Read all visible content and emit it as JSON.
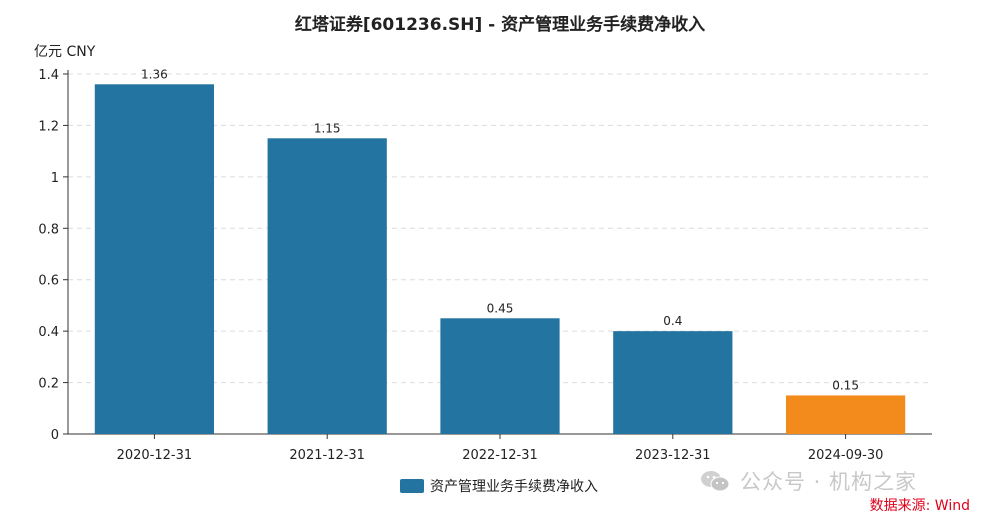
{
  "chart_data": {
    "type": "bar",
    "title": "红塔证券[601236.SH] - 资产管理业务手续费净收入",
    "unit_label": "亿元  CNY",
    "categories": [
      "2020-12-31",
      "2021-12-31",
      "2022-12-31",
      "2023-12-31",
      "2024-09-30"
    ],
    "series": [
      {
        "name": "资产管理业务手续费净收入",
        "values": [
          1.36,
          1.15,
          0.45,
          0.4,
          0.15
        ]
      }
    ],
    "data_labels": [
      "1.36",
      "1.15",
      "0.45",
      "0.4",
      "0.15"
    ],
    "yticks": [
      "0",
      "0.2",
      "0.4",
      "0.6",
      "0.8",
      "1",
      "1.2",
      "1.4"
    ],
    "ylim": [
      0,
      1.4
    ],
    "grid": true,
    "legend_position": "bottom-center",
    "bar_color": "#2474a2",
    "highlight_color": "#f28a1c",
    "highlight_index": 4
  },
  "watermark": {
    "text": "公众号 · 机构之家",
    "icon": "wechat-icon"
  },
  "source": {
    "text": "数据来源: Wind",
    "color": "#e0001a"
  }
}
